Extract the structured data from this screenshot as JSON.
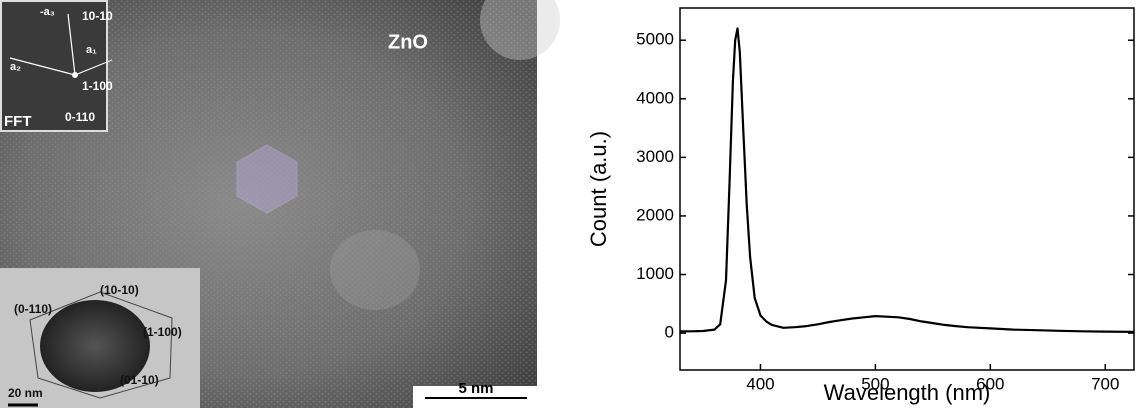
{
  "image": {
    "label": "ZnO",
    "scale_bar": "5 nm",
    "fft": {
      "title": "FFT",
      "spots": [
        "10-10",
        "1-100",
        "0-110"
      ],
      "vectors": [
        "-a₃",
        "a₁",
        "a₂"
      ]
    },
    "inset": {
      "facets": [
        "(10-10)",
        "(0-110)",
        "(1-100)",
        "(01-10)"
      ],
      "scale_bar": "20 nm"
    }
  },
  "chart_data": {
    "type": "line",
    "x_label": "Wavelength (nm)",
    "y_label": "Count (a.u.)",
    "x": [
      330,
      340,
      350,
      360,
      365,
      370,
      373,
      376,
      378,
      380,
      382,
      385,
      388,
      391,
      395,
      400,
      405,
      410,
      420,
      430,
      440,
      450,
      460,
      470,
      480,
      490,
      500,
      510,
      520,
      530,
      540,
      550,
      560,
      570,
      580,
      600,
      620,
      640,
      660,
      680,
      700,
      725
    ],
    "values": [
      30,
      30,
      35,
      60,
      150,
      900,
      2500,
      4300,
      5000,
      5200,
      4800,
      3500,
      2200,
      1300,
      600,
      300,
      200,
      140,
      90,
      100,
      120,
      150,
      190,
      220,
      250,
      270,
      290,
      280,
      270,
      240,
      200,
      170,
      140,
      120,
      100,
      80,
      60,
      50,
      40,
      30,
      25,
      20
    ],
    "color": "#000000",
    "xlim": [
      330,
      725
    ],
    "ylim": [
      -630,
      5550
    ],
    "xticks": [
      400,
      500,
      600,
      700
    ],
    "yticks": [
      0,
      1000,
      2000,
      3000,
      4000,
      5000
    ]
  }
}
